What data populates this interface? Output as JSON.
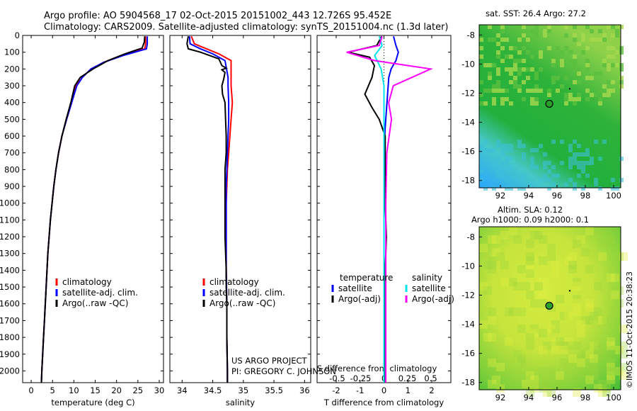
{
  "header": {
    "title_line1": "Argo profile: AO 5904568_17 02-Oct-2015 20151002_443 12.726S 95.452E",
    "title_line2": "Climatology: CARS2009. Satellite-adjusted climatology: synTS_20151004.nc (1.3d later)"
  },
  "credits": {
    "project": "US ARGO PROJECT",
    "pi": "PI: GREGORY C. JOHNSON",
    "watermark": "©IMOS 11-Oct-2015 20:38:23"
  },
  "colors": {
    "climatology": "#ff0000",
    "satellite": "#0000ff",
    "argo": "#000000",
    "salinity_satellite": "#00e5ee",
    "salinity_argo": "#ff00ff",
    "float_marker": "#2aa02a"
  },
  "chart_data": [
    {
      "id": "temperature",
      "type": "line",
      "xlabel": "temperature (deg C)",
      "ylabel": "",
      "xlim": [
        -2,
        31
      ],
      "ylim": [
        2070,
        0
      ],
      "xticks": [
        0,
        5,
        10,
        15,
        20,
        25,
        30
      ],
      "xtick_labels": [
        "0",
        "5",
        "10",
        "15",
        "20",
        "25",
        "30"
      ],
      "yticks": [
        0,
        100,
        200,
        300,
        400,
        500,
        600,
        700,
        800,
        900,
        1000,
        1100,
        1200,
        1300,
        1400,
        1500,
        1600,
        1700,
        1800,
        1900,
        2000
      ],
      "ytick_labels": [
        "0",
        "100",
        "200",
        "300",
        "400",
        "500",
        "600",
        "700",
        "800",
        "900",
        "1000",
        "1100",
        "1200",
        "1300",
        "1400",
        "1500",
        "1600",
        "1700",
        "1800",
        "1900",
        "2000"
      ],
      "legend": [
        "climatology",
        "satellite-adj. clim.",
        "Argo(..raw -QC)"
      ],
      "legend_position": "lower-right",
      "series": [
        {
          "name": "climatology",
          "color": "#ff0000",
          "points": [
            [
              26.8,
              5
            ],
            [
              26.8,
              50
            ],
            [
              26.6,
              80
            ],
            [
              21,
              120
            ],
            [
              17,
              160
            ],
            [
              14,
              200
            ],
            [
              12,
              250
            ],
            [
              10.5,
              300
            ],
            [
              9.5,
              400
            ],
            [
              8.3,
              500
            ],
            [
              7.2,
              600
            ],
            [
              6.4,
              700
            ],
            [
              5.8,
              800
            ],
            [
              5.3,
              900
            ],
            [
              4.9,
              1000
            ],
            [
              4.5,
              1100
            ],
            [
              4.2,
              1200
            ],
            [
              3.9,
              1300
            ],
            [
              3.7,
              1400
            ],
            [
              3.5,
              1500
            ],
            [
              3.3,
              1600
            ],
            [
              3.1,
              1700
            ],
            [
              2.9,
              1800
            ],
            [
              2.7,
              1900
            ],
            [
              2.5,
              2000
            ],
            [
              2.4,
              2070
            ]
          ]
        },
        {
          "name": "satellite-adj. clim.",
          "color": "#0000ff",
          "points": [
            [
              27.2,
              5
            ],
            [
              27.2,
              50
            ],
            [
              27,
              80
            ],
            [
              21.5,
              120
            ],
            [
              17,
              160
            ],
            [
              14,
              200
            ],
            [
              12,
              250
            ],
            [
              10.7,
              300
            ],
            [
              9.5,
              400
            ],
            [
              8.3,
              500
            ],
            [
              7.2,
              600
            ],
            [
              6.4,
              700
            ],
            [
              5.8,
              800
            ],
            [
              5.3,
              900
            ],
            [
              4.9,
              1000
            ],
            [
              4.5,
              1100
            ],
            [
              4.2,
              1200
            ],
            [
              3.9,
              1300
            ],
            [
              3.7,
              1400
            ],
            [
              3.5,
              1500
            ],
            [
              3.3,
              1600
            ],
            [
              3.1,
              1700
            ],
            [
              2.9,
              1800
            ],
            [
              2.7,
              1900
            ],
            [
              2.5,
              2000
            ],
            [
              2.4,
              2070
            ]
          ]
        },
        {
          "name": "Argo(..raw -QC)",
          "color": "#000000",
          "points": [
            [
              26.6,
              5
            ],
            [
              26.5,
              40
            ],
            [
              26,
              75
            ],
            [
              22,
              110
            ],
            [
              18,
              150
            ],
            [
              14.5,
              200
            ],
            [
              11.5,
              250
            ],
            [
              10.2,
              300
            ],
            [
              9.3,
              400
            ],
            [
              8.2,
              500
            ],
            [
              7.2,
              600
            ],
            [
              6.4,
              700
            ],
            [
              5.8,
              800
            ],
            [
              5.3,
              900
            ],
            [
              4.9,
              1000
            ],
            [
              4.5,
              1100
            ],
            [
              4.2,
              1200
            ],
            [
              3.9,
              1300
            ],
            [
              3.7,
              1400
            ],
            [
              3.5,
              1500
            ],
            [
              3.3,
              1600
            ],
            [
              3.1,
              1700
            ],
            [
              2.9,
              1800
            ],
            [
              2.7,
              1900
            ],
            [
              2.5,
              2000
            ],
            [
              2.4,
              2070
            ]
          ]
        }
      ]
    },
    {
      "id": "salinity",
      "type": "line",
      "xlabel": "salinity",
      "ylabel": "",
      "xlim": [
        33.8,
        36.1
      ],
      "ylim": [
        2070,
        0
      ],
      "xticks": [
        34,
        34.5,
        35,
        35.5,
        36
      ],
      "xtick_labels": [
        "34",
        "34.5",
        "35",
        "35.5",
        "36"
      ],
      "legend": [
        "climatology",
        "satellite-adj. clim.",
        "Argo(..raw -QC)"
      ],
      "legend_position": "lower-right",
      "series": [
        {
          "name": "climatology",
          "color": "#ff0000",
          "points": [
            [
              34.15,
              5
            ],
            [
              34.2,
              50
            ],
            [
              34.4,
              80
            ],
            [
              34.6,
              110
            ],
            [
              34.8,
              150
            ],
            [
              34.8,
              250
            ],
            [
              34.8,
              300
            ],
            [
              34.82,
              400
            ],
            [
              34.8,
              500
            ],
            [
              34.78,
              600
            ],
            [
              34.76,
              700
            ],
            [
              34.74,
              800
            ],
            [
              34.73,
              900
            ],
            [
              34.72,
              1000
            ],
            [
              34.72,
              1200
            ],
            [
              34.72,
              1400
            ],
            [
              34.73,
              1600
            ],
            [
              34.73,
              1800
            ],
            [
              34.74,
              2000
            ],
            [
              34.74,
              2070
            ]
          ]
        },
        {
          "name": "satellite-adj. clim.",
          "color": "#0000ff",
          "points": [
            [
              34.12,
              5
            ],
            [
              34.13,
              50
            ],
            [
              34.3,
              80
            ],
            [
              34.5,
              110
            ],
            [
              34.7,
              150
            ],
            [
              34.75,
              250
            ],
            [
              34.75,
              300
            ],
            [
              34.76,
              400
            ],
            [
              34.76,
              500
            ],
            [
              34.75,
              600
            ],
            [
              34.74,
              700
            ],
            [
              34.73,
              800
            ],
            [
              34.72,
              900
            ],
            [
              34.72,
              1000
            ],
            [
              34.72,
              1200
            ],
            [
              34.72,
              1400
            ],
            [
              34.73,
              1600
            ],
            [
              34.73,
              1800
            ],
            [
              34.74,
              2000
            ],
            [
              34.74,
              2070
            ]
          ]
        },
        {
          "name": "Argo(..raw -QC)",
          "color": "#000000",
          "points": [
            [
              34.1,
              5
            ],
            [
              34.08,
              50
            ],
            [
              34.1,
              80
            ],
            [
              34.3,
              100
            ],
            [
              34.6,
              140
            ],
            [
              34.65,
              180
            ],
            [
              34.72,
              195
            ],
            [
              34.65,
              205
            ],
            [
              34.7,
              220
            ],
            [
              34.68,
              260
            ],
            [
              34.65,
              300
            ],
            [
              34.66,
              350
            ],
            [
              34.7,
              400
            ],
            [
              34.71,
              500
            ],
            [
              34.72,
              600
            ],
            [
              34.72,
              700
            ],
            [
              34.7,
              800
            ],
            [
              34.7,
              900
            ],
            [
              34.7,
              1000
            ],
            [
              34.7,
              1200
            ],
            [
              34.72,
              1400
            ],
            [
              34.72,
              1500
            ],
            [
              34.73,
              1600
            ],
            [
              34.73,
              1800
            ],
            [
              34.74,
              2000
            ],
            [
              34.74,
              2070
            ]
          ]
        }
      ]
    },
    {
      "id": "difference",
      "type": "line",
      "xlabel": "T difference from climatology",
      "x2label": "S difference from climatology",
      "ylabel": "",
      "xlim": [
        -2.8,
        2.8
      ],
      "ylim": [
        2070,
        0
      ],
      "xticks": [
        -2,
        -1,
        0,
        1,
        2
      ],
      "xtick_labels": [
        "-2",
        "-1",
        "0",
        "1",
        "2"
      ],
      "x2ticks": [
        -0.5,
        -0.25,
        0,
        0.25,
        0.5
      ],
      "x2tick_labels": [
        "-0.5",
        "-0.25",
        "0",
        "0.25",
        "0.5"
      ],
      "legend_headers": [
        "temperature",
        "salinity"
      ],
      "legend": [
        "satellite",
        "Argo(-adj)",
        "satellite",
        "Argo(-adj)"
      ],
      "legend_position": "lower-center",
      "series": [
        {
          "name": "satellite",
          "group": "temperature",
          "color": "#0000ff",
          "points": [
            [
              0.4,
              5
            ],
            [
              0.5,
              60
            ],
            [
              0.6,
              100
            ],
            [
              0.5,
              150
            ],
            [
              0.3,
              200
            ],
            [
              0.2,
              250
            ],
            [
              0.15,
              350
            ],
            [
              0.1,
              450
            ],
            [
              0.05,
              550
            ],
            [
              0,
              700
            ],
            [
              0,
              1000
            ],
            [
              0,
              1500
            ],
            [
              0,
              2000
            ],
            [
              0,
              2070
            ]
          ]
        },
        {
          "name": "Argo(-adj)",
          "group": "temperature",
          "color": "#000000",
          "points": [
            [
              -0.1,
              5
            ],
            [
              -0.3,
              60
            ],
            [
              -1.5,
              100
            ],
            [
              -0.6,
              130
            ],
            [
              -0.4,
              180
            ],
            [
              -0.5,
              250
            ],
            [
              -0.8,
              350
            ],
            [
              -0.5,
              430
            ],
            [
              -0.2,
              500
            ],
            [
              0.05,
              600
            ],
            [
              0.05,
              800
            ],
            [
              0.05,
              1000
            ],
            [
              0.1,
              1200
            ],
            [
              0.05,
              1400
            ],
            [
              0.05,
              1600
            ],
            [
              0.05,
              1800
            ],
            [
              0.05,
              2000
            ],
            [
              0.05,
              2070
            ]
          ]
        },
        {
          "name": "satellite",
          "group": "salinity",
          "color": "#00e5ee",
          "points": [
            [
              -0.05,
              5
            ],
            [
              -0.02,
              60
            ],
            [
              -0.1,
              120
            ],
            [
              -0.03,
              200
            ],
            [
              0,
              300
            ],
            [
              0,
              500
            ],
            [
              0,
              700
            ],
            [
              0,
              1000
            ],
            [
              0,
              1500
            ],
            [
              0,
              2000
            ],
            [
              0,
              2070
            ]
          ]
        },
        {
          "name": "Argo(-adj)",
          "group": "salinity",
          "color": "#ff00ff",
          "points": [
            [
              -0.02,
              5
            ],
            [
              -0.05,
              60
            ],
            [
              -0.4,
              100
            ],
            [
              -0.1,
              150
            ],
            [
              0.5,
              200
            ],
            [
              0.1,
              300
            ],
            [
              0.05,
              400
            ],
            [
              0.08,
              500
            ],
            [
              0.03,
              700
            ],
            [
              0.02,
              1000
            ],
            [
              0.02,
              1500
            ],
            [
              0.02,
              2000
            ],
            [
              0.02,
              2070
            ]
          ]
        }
      ]
    },
    {
      "id": "sst_map",
      "type": "heatmap",
      "title": "sat. SST: 26.4 Argo: 27.2",
      "xlim": [
        90.5,
        100.5
      ],
      "ylim": [
        -18.5,
        -7.3
      ],
      "xticks": [
        92,
        94,
        96,
        98,
        100
      ],
      "xtick_labels": [
        "92",
        "94",
        "96",
        "98",
        "100"
      ],
      "yticks": [
        -8,
        -10,
        -12,
        -14,
        -16,
        -18
      ],
      "ytick_labels": [
        "-8",
        "-10",
        "-12",
        "-14",
        "-16",
        "-18"
      ],
      "float_position": [
        95.452,
        -12.726
      ]
    },
    {
      "id": "sla_map",
      "type": "heatmap",
      "title_line1": "Altim. SLA: 0.12",
      "title_line2": "Argo h1000: 0.09 h2000: 0.1",
      "xlim": [
        90.5,
        100.5
      ],
      "ylim": [
        -18.5,
        -7.3
      ],
      "xticks": [
        92,
        94,
        96,
        98,
        100
      ],
      "xtick_labels": [
        "92",
        "94",
        "96",
        "98",
        "100"
      ],
      "yticks": [
        -8,
        -10,
        -12,
        -14,
        -16,
        -18
      ],
      "ytick_labels": [
        "-8",
        "-10",
        "-12",
        "-14",
        "-16",
        "-18"
      ],
      "float_position": [
        95.452,
        -12.726
      ]
    }
  ]
}
